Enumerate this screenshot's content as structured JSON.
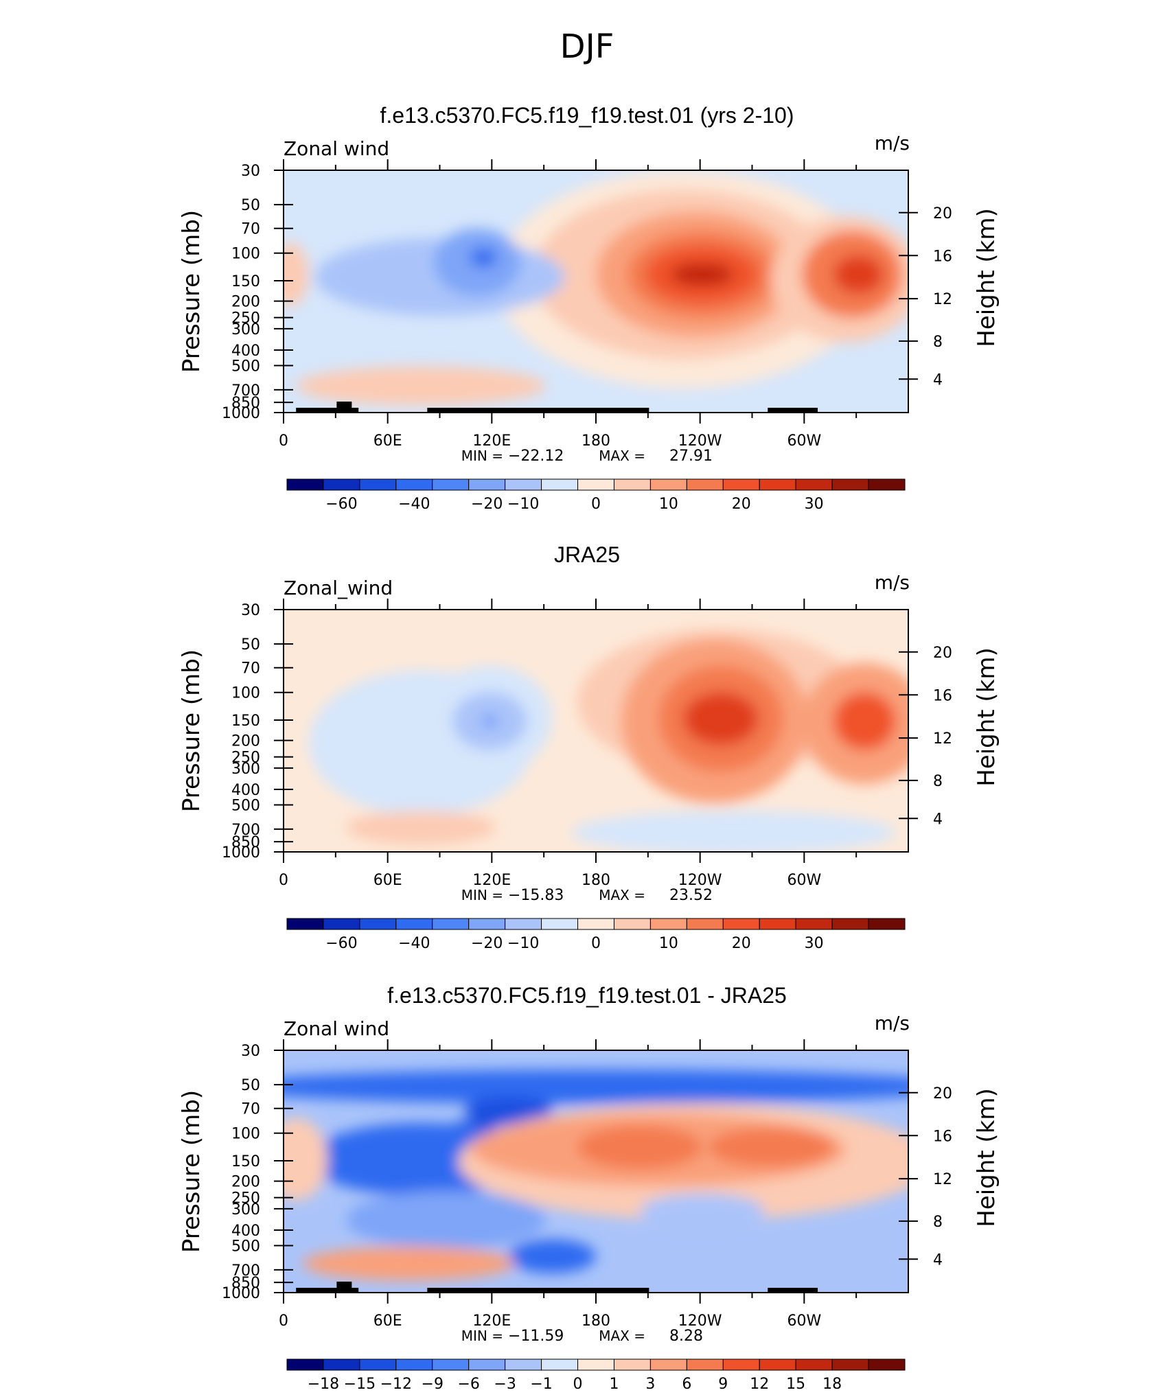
{
  "title": "DJF",
  "chart_data": [
    {
      "type": "heatmap",
      "panel_title": "f.e13.c5370.FC5.f19_f19.test.01 (yrs 2-10)",
      "left_label": "Zonal wind",
      "right_label": "m/s",
      "ylabel": "Pressure (mb)",
      "y2label": "Height (km)",
      "yticks": [
        "30",
        "50",
        "70",
        "100",
        "150",
        "200",
        "250",
        "300",
        "400",
        "500",
        "700",
        "850",
        "1000"
      ],
      "y2ticks": [
        "20",
        "16",
        "12",
        "8",
        "4"
      ],
      "xticks": [
        "0",
        "60E",
        "120E",
        "180",
        "120W",
        "60W"
      ],
      "stats": {
        "min_label": "MIN =",
        "min": "−22.12",
        "max_label": "MAX =",
        "max": "27.91"
      },
      "colorbar_labels": [
        "−60",
        "−40",
        "−20",
        "−10",
        "0",
        "10",
        "20",
        "30"
      ],
      "colorbar_colors": [
        "#00006e",
        "#0a2dbd",
        "#1a4fe0",
        "#2e6bf0",
        "#4f86f7",
        "#7ea5f8",
        "#aac4fa",
        "#d6e6fb",
        "#fde9d9",
        "#fccbb3",
        "#f9a07a",
        "#f47a4f",
        "#f0532c",
        "#e03c1a",
        "#c22810",
        "#9b1a0a",
        "#6e0a05"
      ],
      "blobs": [
        {
          "x": 0.64,
          "y": 0.45,
          "rx": 0.3,
          "ry": 0.45,
          "c": "#fde9d9"
        },
        {
          "x": 0.64,
          "y": 0.43,
          "rx": 0.24,
          "ry": 0.35,
          "c": "#fccbb3"
        },
        {
          "x": 0.66,
          "y": 0.43,
          "rx": 0.16,
          "ry": 0.26,
          "c": "#f9a07a"
        },
        {
          "x": 0.67,
          "y": 0.43,
          "rx": 0.12,
          "ry": 0.18,
          "c": "#f47a4f"
        },
        {
          "x": 0.67,
          "y": 0.43,
          "rx": 0.09,
          "ry": 0.12,
          "c": "#f0532c"
        },
        {
          "x": 0.67,
          "y": 0.43,
          "rx": 0.05,
          "ry": 0.05,
          "c": "#c22810"
        },
        {
          "x": 0.9,
          "y": 0.45,
          "rx": 0.12,
          "ry": 0.26,
          "c": "#fccbb3"
        },
        {
          "x": 0.91,
          "y": 0.43,
          "rx": 0.08,
          "ry": 0.18,
          "c": "#f47a4f"
        },
        {
          "x": 0.92,
          "y": 0.43,
          "rx": 0.04,
          "ry": 0.08,
          "c": "#e03c1a"
        },
        {
          "x": 0.25,
          "y": 0.44,
          "rx": 0.2,
          "ry": 0.16,
          "c": "#aac4fa"
        },
        {
          "x": 0.31,
          "y": 0.38,
          "rx": 0.07,
          "ry": 0.14,
          "c": "#7ea5f8"
        },
        {
          "x": 0.32,
          "y": 0.36,
          "rx": 0.022,
          "ry": 0.04,
          "c": "#2e6bf0"
        },
        {
          "x": 0.22,
          "y": 0.89,
          "rx": 0.2,
          "ry": 0.08,
          "c": "#fccbb3"
        },
        {
          "x": 0.01,
          "y": 0.43,
          "rx": 0.03,
          "ry": 0.13,
          "c": "#fccbb3"
        }
      ]
    },
    {
      "type": "heatmap",
      "panel_title": "JRA25",
      "left_label": "Zonal_wind",
      "right_label": "m/s",
      "ylabel": "Pressure (mb)",
      "y2label": "Height (km)",
      "yticks": [
        "30",
        "50",
        "70",
        "100",
        "150",
        "200",
        "250",
        "300",
        "400",
        "500",
        "700",
        "850",
        "1000"
      ],
      "y2ticks": [
        "20",
        "16",
        "12",
        "8",
        "4"
      ],
      "xticks": [
        "0",
        "60E",
        "120E",
        "180",
        "120W",
        "60W"
      ],
      "stats": {
        "min_label": "MIN =",
        "min": "−15.83",
        "max_label": "MAX =",
        "max": "23.52"
      },
      "colorbar_labels": [
        "−60",
        "−40",
        "−20",
        "−10",
        "0",
        "10",
        "20",
        "30"
      ],
      "colorbar_colors": [
        "#00006e",
        "#0a2dbd",
        "#1a4fe0",
        "#2e6bf0",
        "#4f86f7",
        "#7ea5f8",
        "#aac4fa",
        "#d6e6fb",
        "#fde9d9",
        "#fccbb3",
        "#f9a07a",
        "#f47a4f",
        "#f0532c",
        "#e03c1a",
        "#c22810",
        "#9b1a0a",
        "#6e0a05"
      ],
      "blobs": [
        {
          "x": 0.22,
          "y": 0.55,
          "rx": 0.18,
          "ry": 0.3,
          "c": "#d6e6fb"
        },
        {
          "x": 0.33,
          "y": 0.45,
          "rx": 0.1,
          "ry": 0.22,
          "c": "#d6e6fb"
        },
        {
          "x": 0.33,
          "y": 0.46,
          "rx": 0.06,
          "ry": 0.12,
          "c": "#aac4fa"
        },
        {
          "x": 0.33,
          "y": 0.46,
          "rx": 0.012,
          "ry": 0.02,
          "c": "#4f86f7"
        },
        {
          "x": 0.7,
          "y": 0.38,
          "rx": 0.23,
          "ry": 0.3,
          "c": "#fccbb3"
        },
        {
          "x": 0.69,
          "y": 0.46,
          "rx": 0.15,
          "ry": 0.34,
          "c": "#f9a07a"
        },
        {
          "x": 0.7,
          "y": 0.45,
          "rx": 0.1,
          "ry": 0.22,
          "c": "#f47a4f"
        },
        {
          "x": 0.7,
          "y": 0.45,
          "rx": 0.06,
          "ry": 0.11,
          "c": "#e03c1a"
        },
        {
          "x": 0.93,
          "y": 0.47,
          "rx": 0.1,
          "ry": 0.25,
          "c": "#f9a07a"
        },
        {
          "x": 0.93,
          "y": 0.46,
          "rx": 0.05,
          "ry": 0.12,
          "c": "#f0532c"
        },
        {
          "x": 0.72,
          "y": 0.92,
          "rx": 0.26,
          "ry": 0.09,
          "c": "#d6e6fb"
        },
        {
          "x": 0.22,
          "y": 0.9,
          "rx": 0.12,
          "ry": 0.07,
          "c": "#fccbb3"
        }
      ]
    },
    {
      "type": "heatmap",
      "panel_title": "f.e13.c5370.FC5.f19_f19.test.01 - JRA25",
      "left_label": "Zonal wind",
      "right_label": "m/s",
      "ylabel": "Pressure (mb)",
      "y2label": "Height (km)",
      "yticks": [
        "30",
        "50",
        "70",
        "100",
        "150",
        "200",
        "250",
        "300",
        "400",
        "500",
        "700",
        "850",
        "1000"
      ],
      "y2ticks": [
        "20",
        "16",
        "12",
        "8",
        "4"
      ],
      "xticks": [
        "0",
        "60E",
        "120E",
        "180",
        "120W",
        "60W"
      ],
      "stats": {
        "min_label": "MIN =",
        "min": "−11.59",
        "max_label": "MAX =",
        "max": "8.28"
      },
      "colorbar_labels": [
        "−18",
        "−15",
        "−12",
        "−9",
        "−6",
        "−3",
        "−1",
        "0",
        "1",
        "3",
        "6",
        "9",
        "12",
        "15",
        "18"
      ],
      "colorbar_colors": [
        "#00006e",
        "#0a2dbd",
        "#1a4fe0",
        "#2e6bf0",
        "#4f86f7",
        "#7ea5f8",
        "#aac4fa",
        "#d6e6fb",
        "#fde9d9",
        "#fccbb3",
        "#f9a07a",
        "#f47a4f",
        "#f0532c",
        "#e03c1a",
        "#c22810",
        "#9b1a0a",
        "#6e0a05"
      ],
      "blobs": [
        {
          "x": 0.5,
          "y": 0.15,
          "rx": 0.6,
          "ry": 0.07,
          "c": "#2e6bf0"
        },
        {
          "x": 0.36,
          "y": 0.25,
          "rx": 0.07,
          "ry": 0.06,
          "c": "#1a4fe0"
        },
        {
          "x": 0.3,
          "y": 0.35,
          "rx": 0.05,
          "ry": 0.06,
          "c": "#1a4fe0"
        },
        {
          "x": 0.22,
          "y": 0.45,
          "rx": 0.18,
          "ry": 0.15,
          "c": "#2e6bf0"
        },
        {
          "x": 0.66,
          "y": 0.46,
          "rx": 0.38,
          "ry": 0.24,
          "c": "#fccbb3"
        },
        {
          "x": 0.6,
          "y": 0.41,
          "rx": 0.3,
          "ry": 0.15,
          "c": "#f9a07a"
        },
        {
          "x": 0.57,
          "y": 0.4,
          "rx": 0.1,
          "ry": 0.09,
          "c": "#f47a4f"
        },
        {
          "x": 0.78,
          "y": 0.4,
          "rx": 0.1,
          "ry": 0.08,
          "c": "#f47a4f"
        },
        {
          "x": 0.67,
          "y": 0.66,
          "rx": 0.1,
          "ry": 0.07,
          "c": "#aac4fa"
        },
        {
          "x": 0.26,
          "y": 0.7,
          "rx": 0.16,
          "ry": 0.12,
          "c": "#7ea5f8"
        },
        {
          "x": 0.43,
          "y": 0.85,
          "rx": 0.07,
          "ry": 0.07,
          "c": "#2e6bf0"
        },
        {
          "x": 0.2,
          "y": 0.88,
          "rx": 0.17,
          "ry": 0.07,
          "c": "#f9a07a"
        },
        {
          "x": 0.02,
          "y": 0.45,
          "rx": 0.05,
          "ry": 0.17,
          "c": "#fccbb3"
        }
      ]
    }
  ]
}
